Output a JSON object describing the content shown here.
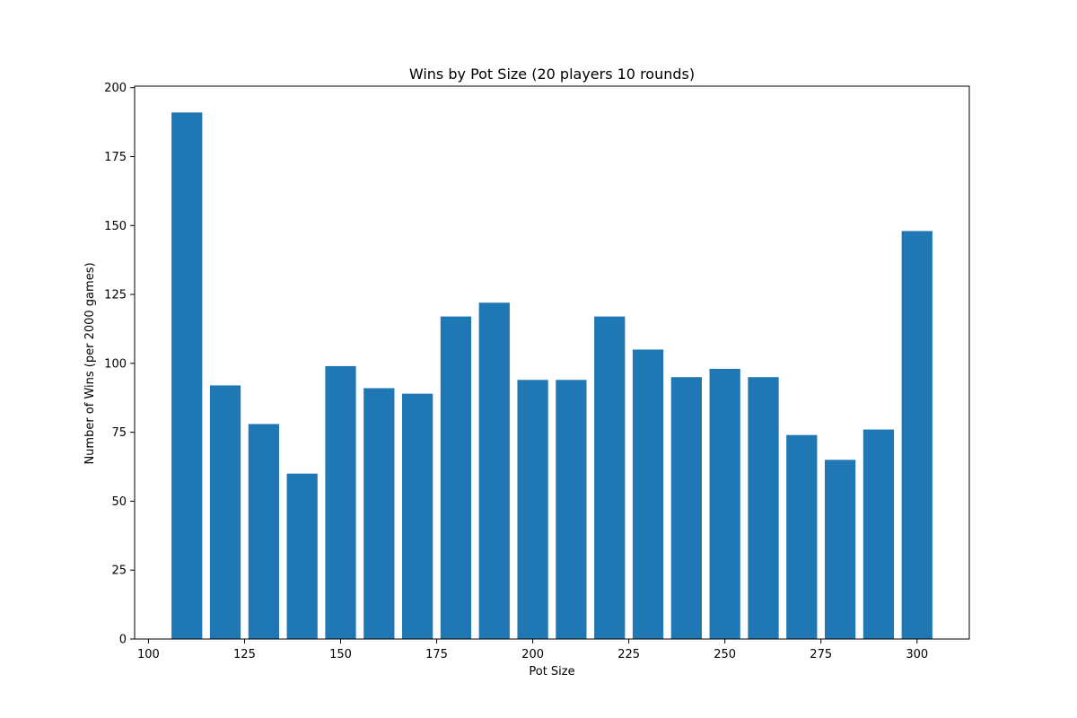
{
  "chart_data": {
    "type": "bar",
    "title": "Wins by Pot Size (20 players 10 rounds)",
    "xlabel": "Pot Size",
    "ylabel": "Number of Wins (per 2000 games)",
    "x": [
      110,
      120,
      130,
      140,
      150,
      160,
      170,
      180,
      190,
      200,
      210,
      220,
      230,
      240,
      250,
      260,
      270,
      280,
      290,
      300
    ],
    "values": [
      191,
      92,
      78,
      60,
      99,
      91,
      89,
      117,
      122,
      94,
      94,
      117,
      105,
      95,
      98,
      95,
      74,
      65,
      76,
      148
    ],
    "bar_width": 8,
    "xlim": [
      96.4,
      313.6
    ],
    "ylim": [
      0,
      200.55
    ],
    "xticks": [
      100,
      125,
      150,
      175,
      200,
      225,
      250,
      275,
      300
    ],
    "yticks": [
      0,
      25,
      50,
      75,
      100,
      125,
      150,
      175,
      200
    ],
    "bar_color": "#1f77b4",
    "grid": false,
    "legend": "none"
  }
}
